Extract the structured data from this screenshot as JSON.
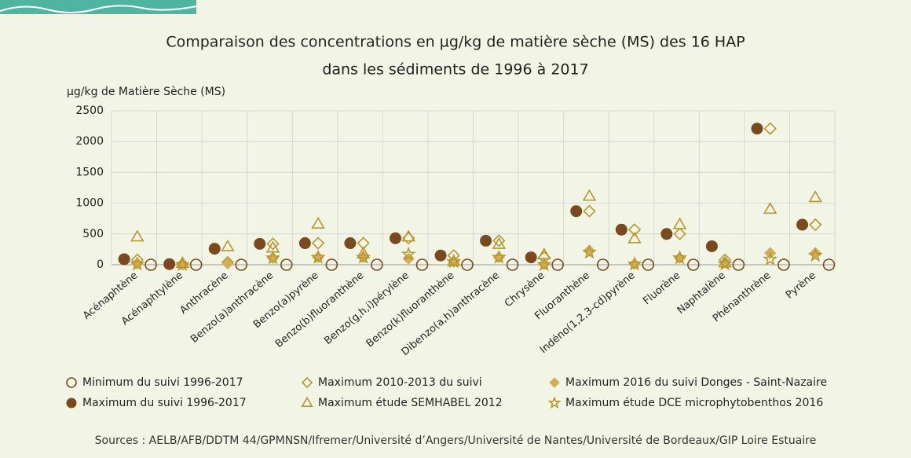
{
  "chart_data": {
    "type": "scatter",
    "title": [
      "Comparaison des concentrations en µg/kg de matière sèche (MS) des 16 HAP",
      "dans les sédiments de 1996 à 2017"
    ],
    "y_label": "µg/kg de Matière Sèche (MS)",
    "source": "Sources : AELB/AFB/DDTM 44/GPMNSN/Ifremer/Université d’Angers/Université de Nantes/Université de Bordeaux/GIP Loire Estuaire",
    "categories": [
      "Acénaphtène",
      "Acénaphtylène",
      "Anthracène",
      "Benzo(a)anthracène",
      "Benzo(a)pyrène",
      "Benzo(b)fluoranthène",
      "Benzo(g,h,i)pérylène",
      "Benzo(k)fluoranthène",
      "Dibenzo(a,h)anthracène",
      "Chrysène",
      "Fluoranthène",
      "Indéno(1,2,3-cd)pyrène",
      "Fluorène",
      "Naphtalène",
      "Phénanthrène",
      "Pyrène"
    ],
    "ylim": [
      0,
      2500
    ],
    "yticks": [
      0,
      500,
      1000,
      1500,
      2000,
      2500
    ],
    "grid": true,
    "series": [
      {
        "name": "Minimum du suivi 1996-2017",
        "marker": "circle",
        "filled": false,
        "color": "#7a4a1e",
        "values": [
          0,
          0,
          0,
          0,
          0,
          0,
          0,
          0,
          0,
          0,
          0,
          0,
          0,
          0,
          0,
          0
        ]
      },
      {
        "name": "Maximum 2010-2013 du suivi",
        "marker": "diamond",
        "filled": false,
        "color": "#b8962e",
        "values": [
          80,
          10,
          40,
          340,
          350,
          350,
          430,
          150,
          390,
          120,
          870,
          570,
          500,
          80,
          2210,
          650
        ]
      },
      {
        "name": "Maximum 2016 du suivi Donges - Saint-Nazaire",
        "marker": "diamond",
        "filled": true,
        "color": "#d2ae5a",
        "values": [
          20,
          5,
          20,
          110,
          120,
          120,
          100,
          50,
          120,
          10,
          230,
          10,
          110,
          40,
          190,
          190
        ]
      },
      {
        "name": "Maximum du suivi 1996-2017",
        "marker": "circle",
        "filled": true,
        "color": "#7a4a1e",
        "values": [
          90,
          10,
          260,
          340,
          350,
          350,
          430,
          150,
          390,
          120,
          870,
          570,
          500,
          300,
          2210,
          650
        ]
      },
      {
        "name": "Maximum étude SEMHABEL 2012",
        "marker": "triangle",
        "filled": false,
        "color": "#b8962e",
        "values": [
          450,
          20,
          290,
          270,
          660,
          180,
          450,
          50,
          330,
          160,
          1110,
          420,
          650,
          30,
          900,
          1090
        ]
      },
      {
        "name": "Maximum étude DCE microphytobenthos 2016",
        "marker": "star",
        "filled": false,
        "color": "#b8962e",
        "values": [
          10,
          0,
          null,
          110,
          120,
          120,
          170,
          50,
          120,
          0,
          200,
          10,
          110,
          10,
          90,
          150
        ]
      }
    ]
  }
}
